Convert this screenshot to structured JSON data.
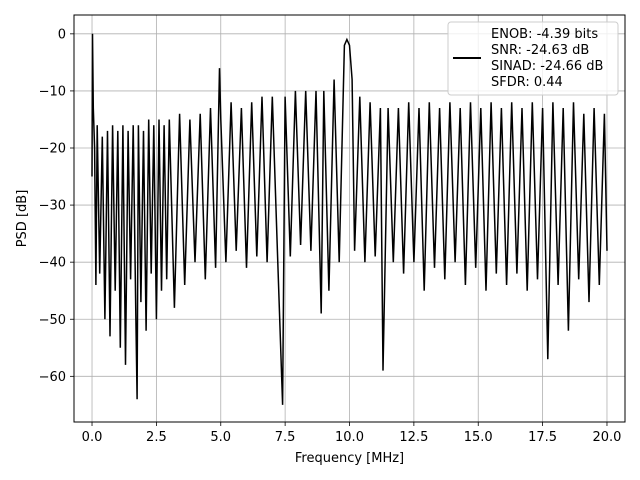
{
  "chart_data": {
    "type": "line",
    "xlabel": "Frequency [MHz]",
    "ylabel": "PSD [dB]",
    "xlim": [
      -0.7,
      20.7
    ],
    "ylim": [
      -68,
      3.3
    ],
    "x_ticks": [
      0.0,
      2.5,
      5.0,
      7.5,
      10.0,
      12.5,
      15.0,
      17.5,
      20.0
    ],
    "x_tick_labels": [
      "0.0",
      "2.5",
      "5.0",
      "7.5",
      "10.0",
      "12.5",
      "15.0",
      "17.5",
      "20.0"
    ],
    "y_ticks": [
      0,
      -10,
      -20,
      -30,
      -40,
      -50,
      -60
    ],
    "y_tick_labels": [
      "0",
      "−10",
      "−20",
      "−30",
      "−40",
      "−50",
      "−60"
    ],
    "grid": true,
    "legend_position": "top-right",
    "legend_entries": [
      "ENOB: -4.39 bits",
      "SNR: -24.63 dB",
      "SINAD: -24.66 dB",
      "SFDR: 0.44"
    ],
    "series": [
      {
        "color": "#000000",
        "points": [
          [
            0.0,
            -25
          ],
          [
            0.02,
            0.0
          ],
          [
            0.05,
            -13
          ],
          [
            0.1,
            -20
          ],
          [
            0.15,
            -44
          ],
          [
            0.2,
            -16
          ],
          [
            0.3,
            -42
          ],
          [
            0.4,
            -18
          ],
          [
            0.5,
            -50
          ],
          [
            0.6,
            -17
          ],
          [
            0.7,
            -53
          ],
          [
            0.8,
            -16
          ],
          [
            0.9,
            -45
          ],
          [
            1.0,
            -17
          ],
          [
            1.1,
            -55
          ],
          [
            1.2,
            -16
          ],
          [
            1.3,
            -58
          ],
          [
            1.4,
            -17
          ],
          [
            1.5,
            -43
          ],
          [
            1.6,
            -16
          ],
          [
            1.7,
            -49
          ],
          [
            1.75,
            -64
          ],
          [
            1.8,
            -16
          ],
          [
            1.9,
            -47
          ],
          [
            2.0,
            -17
          ],
          [
            2.1,
            -52
          ],
          [
            2.2,
            -15
          ],
          [
            2.3,
            -42
          ],
          [
            2.4,
            -16
          ],
          [
            2.5,
            -50
          ],
          [
            2.6,
            -15
          ],
          [
            2.7,
            -45
          ],
          [
            2.8,
            -16
          ],
          [
            2.9,
            -43
          ],
          [
            3.0,
            -15
          ],
          [
            3.2,
            -48
          ],
          [
            3.4,
            -14
          ],
          [
            3.6,
            -44
          ],
          [
            3.8,
            -15
          ],
          [
            4.0,
            -40
          ],
          [
            4.2,
            -14
          ],
          [
            4.4,
            -43
          ],
          [
            4.6,
            -13
          ],
          [
            4.8,
            -41
          ],
          [
            4.95,
            -6
          ],
          [
            5.0,
            -15
          ],
          [
            5.2,
            -40
          ],
          [
            5.4,
            -12
          ],
          [
            5.6,
            -38
          ],
          [
            5.8,
            -13
          ],
          [
            6.0,
            -41
          ],
          [
            6.2,
            -12
          ],
          [
            6.4,
            -39
          ],
          [
            6.6,
            -11
          ],
          [
            6.8,
            -40
          ],
          [
            7.0,
            -11
          ],
          [
            7.2,
            -38
          ],
          [
            7.4,
            -65
          ],
          [
            7.5,
            -11
          ],
          [
            7.7,
            -39
          ],
          [
            7.9,
            -10
          ],
          [
            8.1,
            -37
          ],
          [
            8.3,
            -10
          ],
          [
            8.5,
            -38
          ],
          [
            8.7,
            -10
          ],
          [
            8.9,
            -49
          ],
          [
            9.0,
            -10
          ],
          [
            9.2,
            -45
          ],
          [
            9.4,
            -8
          ],
          [
            9.6,
            -40
          ],
          [
            9.8,
            -2
          ],
          [
            9.9,
            -1
          ],
          [
            10.0,
            -2
          ],
          [
            10.1,
            -8
          ],
          [
            10.2,
            -38
          ],
          [
            10.4,
            -11
          ],
          [
            10.6,
            -40
          ],
          [
            10.8,
            -12
          ],
          [
            11.0,
            -39
          ],
          [
            11.2,
            -13
          ],
          [
            11.3,
            -59
          ],
          [
            11.5,
            -13
          ],
          [
            11.7,
            -40
          ],
          [
            11.9,
            -13
          ],
          [
            12.1,
            -42
          ],
          [
            12.3,
            -12
          ],
          [
            12.5,
            -40
          ],
          [
            12.7,
            -13
          ],
          [
            12.9,
            -45
          ],
          [
            13.1,
            -12
          ],
          [
            13.3,
            -41
          ],
          [
            13.5,
            -13
          ],
          [
            13.7,
            -43
          ],
          [
            13.9,
            -12
          ],
          [
            14.1,
            -40
          ],
          [
            14.3,
            -13
          ],
          [
            14.5,
            -44
          ],
          [
            14.7,
            -12
          ],
          [
            14.9,
            -41
          ],
          [
            15.1,
            -13
          ],
          [
            15.3,
            -45
          ],
          [
            15.5,
            -12
          ],
          [
            15.7,
            -42
          ],
          [
            15.9,
            -13
          ],
          [
            16.1,
            -44
          ],
          [
            16.3,
            -12
          ],
          [
            16.5,
            -42
          ],
          [
            16.7,
            -13
          ],
          [
            16.9,
            -45
          ],
          [
            17.1,
            -12
          ],
          [
            17.3,
            -43
          ],
          [
            17.5,
            -13
          ],
          [
            17.7,
            -57
          ],
          [
            17.9,
            -12
          ],
          [
            18.1,
            -44
          ],
          [
            18.3,
            -13
          ],
          [
            18.5,
            -52
          ],
          [
            18.7,
            -12
          ],
          [
            18.9,
            -43
          ],
          [
            19.1,
            -14
          ],
          [
            19.3,
            -47
          ],
          [
            19.5,
            -13
          ],
          [
            19.7,
            -44
          ],
          [
            19.9,
            -14
          ],
          [
            20.0,
            -38
          ]
        ]
      }
    ]
  }
}
